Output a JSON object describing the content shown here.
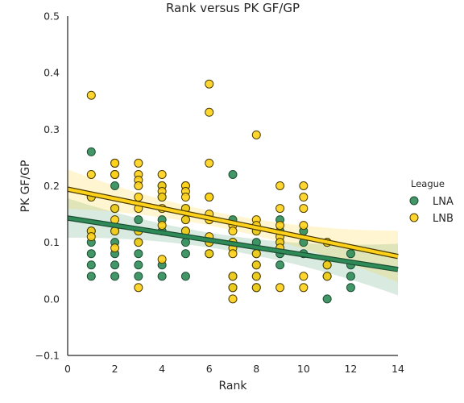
{
  "chart_data": {
    "type": "scatter",
    "title": "Rank versus PK GF/GP",
    "xlabel": "Rank",
    "ylabel": "PK GF/GP",
    "xlim": [
      0,
      14
    ],
    "ylim": [
      -0.1,
      0.5
    ],
    "xticks": [
      "0",
      "2",
      "4",
      "6",
      "8",
      "10",
      "12",
      "14"
    ],
    "yticks": [
      "−0.1",
      "0.0",
      "0.1",
      "0.2",
      "0.3",
      "0.4",
      "0.5"
    ],
    "grid": false,
    "legend_title": "League",
    "legend_position": "right",
    "series": [
      {
        "name": "LNA",
        "color": "#2e8b57",
        "points": [
          [
            1,
            0.26
          ],
          [
            1,
            0.18
          ],
          [
            1,
            0.12
          ],
          [
            1,
            0.1
          ],
          [
            1,
            0.08
          ],
          [
            1,
            0.06
          ],
          [
            1,
            0.04
          ],
          [
            2,
            0.22
          ],
          [
            2,
            0.2
          ],
          [
            2,
            0.16
          ],
          [
            2,
            0.12
          ],
          [
            2,
            0.1
          ],
          [
            2,
            0.08
          ],
          [
            2,
            0.06
          ],
          [
            2,
            0.04
          ],
          [
            3,
            0.14
          ],
          [
            3,
            0.12
          ],
          [
            3,
            0.1
          ],
          [
            3,
            0.08
          ],
          [
            3,
            0.06
          ],
          [
            3,
            0.04
          ],
          [
            4,
            0.2
          ],
          [
            4,
            0.18
          ],
          [
            4,
            0.14
          ],
          [
            4,
            0.12
          ],
          [
            4,
            0.06
          ],
          [
            4,
            0.04
          ],
          [
            5,
            0.16
          ],
          [
            5,
            0.14
          ],
          [
            5,
            0.12
          ],
          [
            5,
            0.1
          ],
          [
            5,
            0.08
          ],
          [
            5,
            0.04
          ],
          [
            6,
            0.1
          ],
          [
            6,
            0.08
          ],
          [
            7,
            0.22
          ],
          [
            7,
            0.14
          ],
          [
            7,
            0.1
          ],
          [
            7,
            0.04
          ],
          [
            7,
            0.02
          ],
          [
            8,
            0.12
          ],
          [
            8,
            0.1
          ],
          [
            8,
            0.08
          ],
          [
            8,
            0.06
          ],
          [
            8,
            0.04
          ],
          [
            8,
            0.02
          ],
          [
            9,
            0.14
          ],
          [
            9,
            0.12
          ],
          [
            9,
            0.1
          ],
          [
            9,
            0.08
          ],
          [
            9,
            0.06
          ],
          [
            10,
            0.12
          ],
          [
            10,
            0.1
          ],
          [
            10,
            0.08
          ],
          [
            11,
            0.1
          ],
          [
            11,
            0.06
          ],
          [
            11,
            0.04
          ],
          [
            11,
            0.0
          ],
          [
            12,
            0.08
          ],
          [
            12,
            0.06
          ],
          [
            12,
            0.04
          ],
          [
            12,
            0.02
          ]
        ],
        "regression": {
          "intercept": 0.143,
          "slope": -0.0065
        }
      },
      {
        "name": "LNB",
        "color": "#ffd11a",
        "points": [
          [
            1,
            0.36
          ],
          [
            1,
            0.22
          ],
          [
            1,
            0.18
          ],
          [
            1,
            0.12
          ],
          [
            1,
            0.11
          ],
          [
            2,
            0.24
          ],
          [
            2,
            0.24
          ],
          [
            2,
            0.22
          ],
          [
            2,
            0.22
          ],
          [
            2,
            0.16
          ],
          [
            2,
            0.14
          ],
          [
            2,
            0.12
          ],
          [
            2,
            0.09
          ],
          [
            3,
            0.24
          ],
          [
            3,
            0.22
          ],
          [
            3,
            0.21
          ],
          [
            3,
            0.2
          ],
          [
            3,
            0.18
          ],
          [
            3,
            0.16
          ],
          [
            3,
            0.12
          ],
          [
            3,
            0.1
          ],
          [
            3,
            0.02
          ],
          [
            4,
            0.22
          ],
          [
            4,
            0.2
          ],
          [
            4,
            0.19
          ],
          [
            4,
            0.18
          ],
          [
            4,
            0.16
          ],
          [
            4,
            0.13
          ],
          [
            4,
            0.07
          ],
          [
            5,
            0.2
          ],
          [
            5,
            0.2
          ],
          [
            5,
            0.19
          ],
          [
            5,
            0.18
          ],
          [
            5,
            0.16
          ],
          [
            5,
            0.14
          ],
          [
            5,
            0.12
          ],
          [
            6,
            0.38
          ],
          [
            6,
            0.33
          ],
          [
            6,
            0.24
          ],
          [
            6,
            0.18
          ],
          [
            6,
            0.18
          ],
          [
            6,
            0.15
          ],
          [
            6,
            0.14
          ],
          [
            6,
            0.11
          ],
          [
            6,
            0.1
          ],
          [
            6,
            0.08
          ],
          [
            7,
            0.13
          ],
          [
            7,
            0.12
          ],
          [
            7,
            0.1
          ],
          [
            7,
            0.09
          ],
          [
            7,
            0.08
          ],
          [
            7,
            0.04
          ],
          [
            7,
            0.02
          ],
          [
            7,
            0.0
          ],
          [
            8,
            0.29
          ],
          [
            8,
            0.14
          ],
          [
            8,
            0.13
          ],
          [
            8,
            0.12
          ],
          [
            8,
            0.08
          ],
          [
            8,
            0.06
          ],
          [
            8,
            0.04
          ],
          [
            8,
            0.02
          ],
          [
            9,
            0.2
          ],
          [
            9,
            0.16
          ],
          [
            9,
            0.13
          ],
          [
            9,
            0.11
          ],
          [
            9,
            0.1
          ],
          [
            9,
            0.09
          ],
          [
            9,
            0.02
          ],
          [
            10,
            0.2
          ],
          [
            10,
            0.18
          ],
          [
            10,
            0.16
          ],
          [
            10,
            0.13
          ],
          [
            10,
            0.04
          ],
          [
            10,
            0.02
          ],
          [
            11,
            0.1
          ],
          [
            11,
            0.06
          ],
          [
            11,
            0.04
          ]
        ],
        "regression": {
          "intercept": 0.194,
          "slope": -0.0085
        }
      }
    ]
  }
}
